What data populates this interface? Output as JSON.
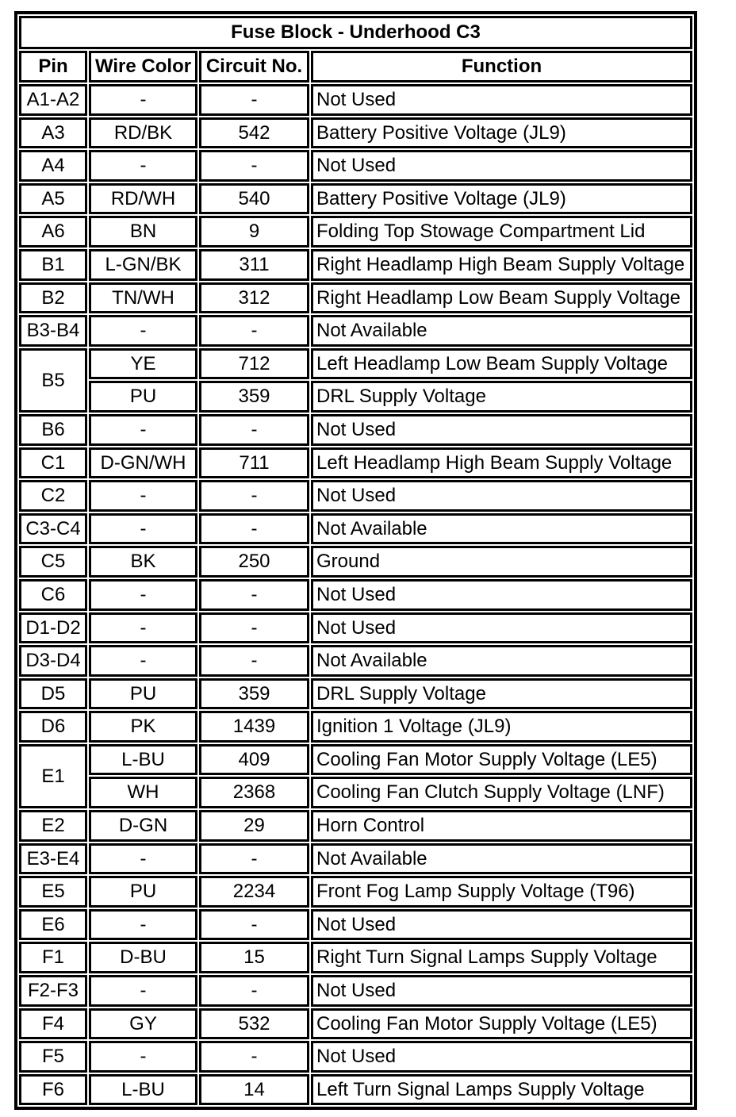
{
  "title": "Fuse Block - Underhood C3",
  "columns": [
    "Pin",
    "Wire Color",
    "Circuit No.",
    "Function"
  ],
  "rows": [
    {
      "pin": "A1-A2",
      "entries": [
        {
          "wire": "-",
          "circuit": "-",
          "function": "Not Used"
        }
      ]
    },
    {
      "pin": "A3",
      "entries": [
        {
          "wire": "RD/BK",
          "circuit": "542",
          "function": "Battery Positive Voltage (JL9)"
        }
      ]
    },
    {
      "pin": "A4",
      "entries": [
        {
          "wire": "-",
          "circuit": "-",
          "function": "Not Used"
        }
      ]
    },
    {
      "pin": "A5",
      "entries": [
        {
          "wire": "RD/WH",
          "circuit": "540",
          "function": "Battery Positive Voltage (JL9)"
        }
      ]
    },
    {
      "pin": "A6",
      "entries": [
        {
          "wire": "BN",
          "circuit": "9",
          "function": "Folding Top Stowage Compartment Lid"
        }
      ]
    },
    {
      "pin": "B1",
      "entries": [
        {
          "wire": "L-GN/BK",
          "circuit": "311",
          "function": "Right Headlamp High Beam Supply Voltage"
        }
      ]
    },
    {
      "pin": "B2",
      "entries": [
        {
          "wire": "TN/WH",
          "circuit": "312",
          "function": "Right Headlamp Low Beam Supply Voltage"
        }
      ]
    },
    {
      "pin": "B3-B4",
      "entries": [
        {
          "wire": "-",
          "circuit": "-",
          "function": "Not Available"
        }
      ]
    },
    {
      "pin": "B5",
      "entries": [
        {
          "wire": "YE",
          "circuit": "712",
          "function": "Left Headlamp Low Beam Supply Voltage"
        },
        {
          "wire": "PU",
          "circuit": "359",
          "function": "DRL Supply Voltage"
        }
      ]
    },
    {
      "pin": "B6",
      "entries": [
        {
          "wire": "-",
          "circuit": "-",
          "function": "Not Used"
        }
      ]
    },
    {
      "pin": "C1",
      "entries": [
        {
          "wire": "D-GN/WH",
          "circuit": "711",
          "function": "Left Headlamp High Beam Supply Voltage"
        }
      ]
    },
    {
      "pin": "C2",
      "entries": [
        {
          "wire": "-",
          "circuit": "-",
          "function": "Not Used"
        }
      ]
    },
    {
      "pin": "C3-C4",
      "entries": [
        {
          "wire": "-",
          "circuit": "-",
          "function": "Not Available"
        }
      ]
    },
    {
      "pin": "C5",
      "entries": [
        {
          "wire": "BK",
          "circuit": "250",
          "function": "Ground"
        }
      ]
    },
    {
      "pin": "C6",
      "entries": [
        {
          "wire": "-",
          "circuit": "-",
          "function": "Not Used"
        }
      ]
    },
    {
      "pin": "D1-D2",
      "entries": [
        {
          "wire": "-",
          "circuit": "-",
          "function": "Not Used"
        }
      ]
    },
    {
      "pin": "D3-D4",
      "entries": [
        {
          "wire": "-",
          "circuit": "-",
          "function": "Not Available"
        }
      ]
    },
    {
      "pin": "D5",
      "entries": [
        {
          "wire": "PU",
          "circuit": "359",
          "function": "DRL Supply Voltage"
        }
      ]
    },
    {
      "pin": "D6",
      "entries": [
        {
          "wire": "PK",
          "circuit": "1439",
          "function": "Ignition 1 Voltage (JL9)"
        }
      ]
    },
    {
      "pin": "E1",
      "entries": [
        {
          "wire": "L-BU",
          "circuit": "409",
          "function": "Cooling Fan Motor Supply Voltage (LE5)"
        },
        {
          "wire": "WH",
          "circuit": "2368",
          "function": "Cooling Fan Clutch Supply Voltage (LNF)"
        }
      ]
    },
    {
      "pin": "E2",
      "entries": [
        {
          "wire": "D-GN",
          "circuit": "29",
          "function": "Horn Control"
        }
      ]
    },
    {
      "pin": "E3-E4",
      "entries": [
        {
          "wire": "-",
          "circuit": "-",
          "function": "Not Available"
        }
      ]
    },
    {
      "pin": "E5",
      "entries": [
        {
          "wire": "PU",
          "circuit": "2234",
          "function": "Front Fog Lamp Supply Voltage (T96)"
        }
      ]
    },
    {
      "pin": "E6",
      "entries": [
        {
          "wire": "-",
          "circuit": "-",
          "function": "Not Used"
        }
      ]
    },
    {
      "pin": "F1",
      "entries": [
        {
          "wire": "D-BU",
          "circuit": "15",
          "function": "Right Turn Signal Lamps Supply Voltage"
        }
      ]
    },
    {
      "pin": "F2-F3",
      "entries": [
        {
          "wire": "-",
          "circuit": "-",
          "function": "Not Used"
        }
      ]
    },
    {
      "pin": "F4",
      "entries": [
        {
          "wire": "GY",
          "circuit": "532",
          "function": "Cooling Fan Motor Supply Voltage (LE5)"
        }
      ]
    },
    {
      "pin": "F5",
      "entries": [
        {
          "wire": "-",
          "circuit": "-",
          "function": "Not Used"
        }
      ]
    },
    {
      "pin": "F6",
      "entries": [
        {
          "wire": "L-BU",
          "circuit": "14",
          "function": "Left Turn Signal Lamps Supply Voltage"
        }
      ]
    }
  ]
}
